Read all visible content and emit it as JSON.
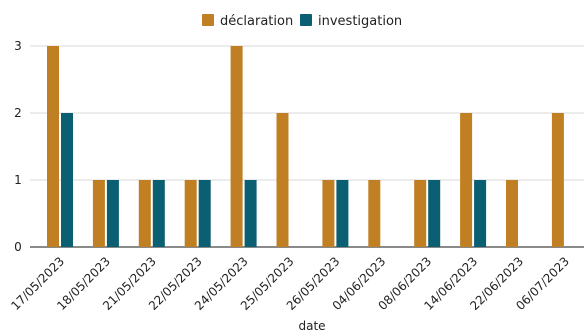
{
  "chart_data": {
    "type": "bar",
    "title": "",
    "xlabel": "date",
    "ylabel": "",
    "ylim": [
      0,
      3
    ],
    "y_ticks": [
      0,
      1,
      2,
      3
    ],
    "grid": "horizontal",
    "legend_position": "top-center",
    "categories": [
      "17/05/2023",
      "18/05/2023",
      "21/05/2023",
      "22/05/2023",
      "24/05/2023",
      "25/05/2023",
      "26/05/2023",
      "04/06/2023",
      "08/06/2023",
      "14/06/2023",
      "22/06/2023",
      "06/07/2023"
    ],
    "series": [
      {
        "name": "déclaration",
        "color": "#c17f23",
        "values": [
          3,
          1,
          1,
          1,
          3,
          2,
          1,
          1,
          1,
          2,
          1,
          2
        ]
      },
      {
        "name": "investigation",
        "color": "#0a5f72",
        "values": [
          2,
          1,
          1,
          1,
          1,
          0,
          1,
          0,
          1,
          1,
          0,
          0
        ]
      }
    ]
  }
}
